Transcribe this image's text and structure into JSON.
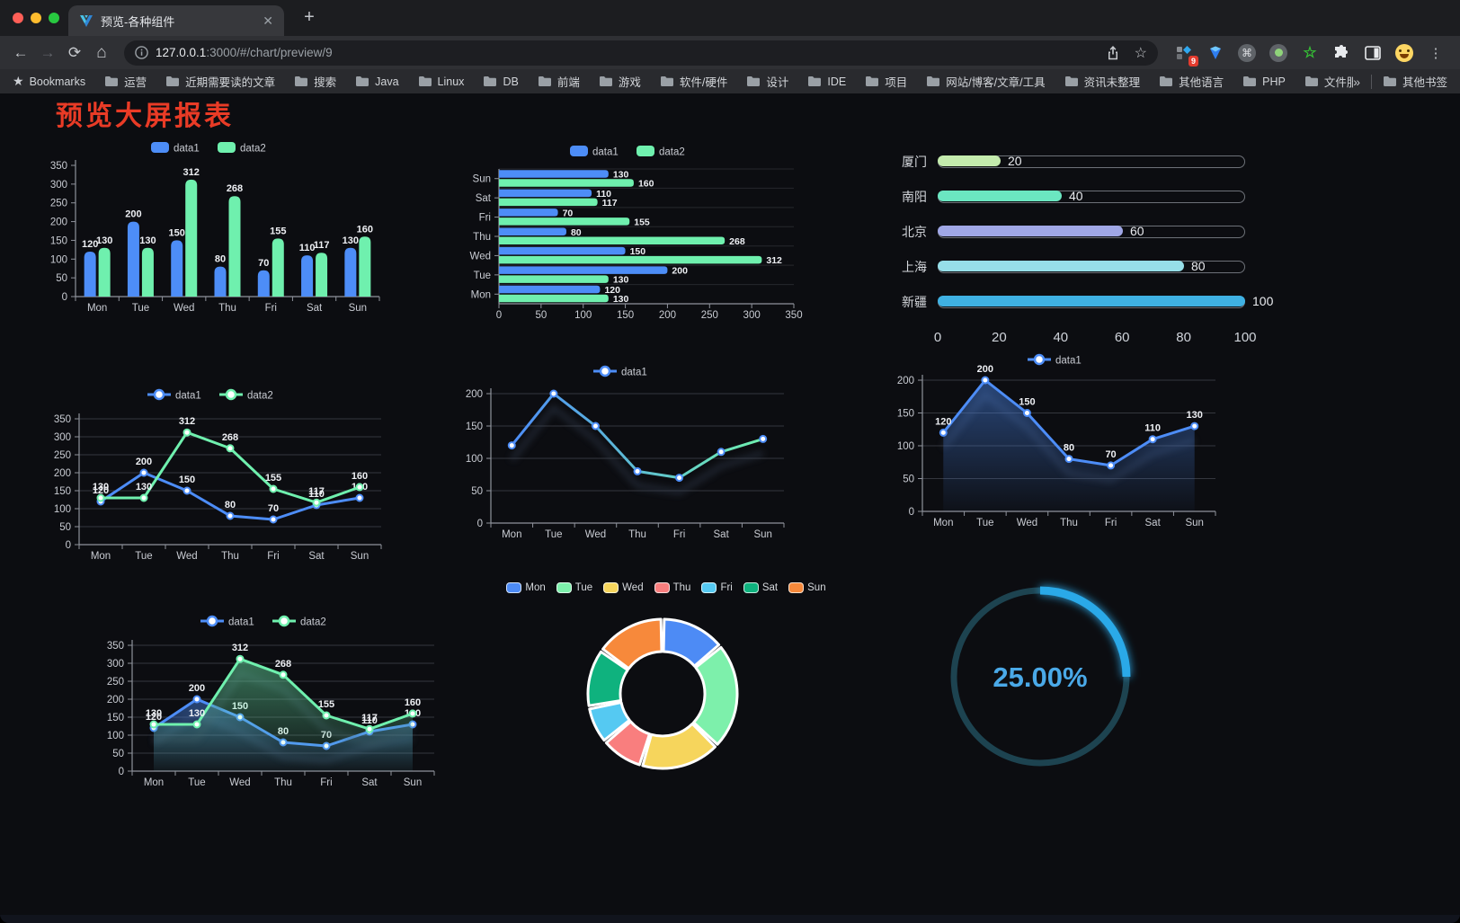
{
  "browser": {
    "tab_title": "预览-各种组件",
    "tab_close_glyph": "✕",
    "new_tab_glyph": "+",
    "url_host": "127.0.0.1",
    "url_path": ":3000/#/chart/preview/9",
    "bookmarks_label": "Bookmarks",
    "bookmark_folders": [
      "运营",
      "近期需要读的文章",
      "搜索",
      "Java",
      "Linux",
      "DB",
      "前端",
      "游戏",
      "软件/硬件",
      "设计",
      "IDE",
      "项目",
      "网站/博客/文章/工具",
      "资讯未整理",
      "其他语言",
      "PHP",
      "文件服务器"
    ],
    "overflow_glyph": "»",
    "other_bookmarks": "其他书签",
    "extension_badge": "9",
    "kebab_glyph": "⋮"
  },
  "page": {
    "title": "预览大屏报表",
    "title_color": "#e93b26",
    "background": "#0c0d11"
  },
  "chart_data": [
    {
      "id": "bar-vertical",
      "type": "bar",
      "orientation": "vertical",
      "categories": [
        "Mon",
        "Tue",
        "Wed",
        "Thu",
        "Fri",
        "Sat",
        "Sun"
      ],
      "series": [
        {
          "name": "data1",
          "color": "#4d8df7",
          "values": [
            120,
            200,
            150,
            80,
            70,
            110,
            130
          ]
        },
        {
          "name": "data2",
          "color": "#6ff0ae",
          "values": [
            130,
            130,
            312,
            268,
            155,
            117,
            160
          ]
        }
      ],
      "ylim": [
        0,
        350
      ],
      "ytick": 50,
      "legend_position": "top",
      "value_labels": true,
      "grid": false
    },
    {
      "id": "bar-horizontal",
      "type": "bar",
      "orientation": "horizontal",
      "categories": [
        "Mon",
        "Tue",
        "Wed",
        "Thu",
        "Fri",
        "Sat",
        "Sun"
      ],
      "display_order_top_to_bottom": [
        "Sun",
        "Sat",
        "Fri",
        "Thu",
        "Wed",
        "Tue",
        "Mon"
      ],
      "series": [
        {
          "name": "data1",
          "color": "#4d8df7",
          "values": [
            120,
            200,
            150,
            80,
            70,
            110,
            130
          ]
        },
        {
          "name": "data2",
          "color": "#6ff0ae",
          "values": [
            130,
            130,
            312,
            268,
            155,
            117,
            160
          ]
        }
      ],
      "xlim": [
        0,
        350
      ],
      "xtick": 50,
      "legend_position": "top",
      "value_labels": true
    },
    {
      "id": "city-progress",
      "type": "bar",
      "variant": "progress",
      "xlim": [
        0,
        100
      ],
      "xticks": [
        0,
        20,
        40,
        60,
        80,
        100
      ],
      "rows": [
        {
          "label": "厦门",
          "value": 20,
          "color": "#c4ebad"
        },
        {
          "label": "南阳",
          "value": 40,
          "color": "#6be6c1"
        },
        {
          "label": "北京",
          "value": 60,
          "color": "#a0a7e6"
        },
        {
          "label": "上海",
          "value": 80,
          "color": "#96dee8"
        },
        {
          "label": "新疆",
          "value": 100,
          "color": "#3fb1e3"
        }
      ]
    },
    {
      "id": "line-dual",
      "type": "line",
      "categories": [
        "Mon",
        "Tue",
        "Wed",
        "Thu",
        "Fri",
        "Sat",
        "Sun"
      ],
      "series": [
        {
          "name": "data1",
          "color": "#4d8df7",
          "values": [
            120,
            200,
            150,
            80,
            70,
            110,
            130
          ]
        },
        {
          "name": "data2",
          "color": "#6ff0ae",
          "values": [
            130,
            130,
            312,
            268,
            155,
            117,
            160
          ]
        }
      ],
      "ylim": [
        0,
        350
      ],
      "ytick": 50,
      "legend_position": "top",
      "value_labels": true,
      "markers": true,
      "grid": true,
      "shadow": false
    },
    {
      "id": "line-gradient",
      "type": "line",
      "categories": [
        "Mon",
        "Tue",
        "Wed",
        "Thu",
        "Fri",
        "Sat",
        "Sun"
      ],
      "series": [
        {
          "name": "data1",
          "gradient": [
            "#4d8df7",
            "#6ff0ae"
          ],
          "marker_color": "#4d8df7",
          "values": [
            120,
            200,
            150,
            80,
            70,
            110,
            130
          ]
        }
      ],
      "ylim": [
        0,
        200
      ],
      "ytick": 50,
      "legend_position": "top",
      "value_labels": false,
      "markers": true,
      "grid": true,
      "shadow": true
    },
    {
      "id": "area-single",
      "type": "area",
      "categories": [
        "Mon",
        "Tue",
        "Wed",
        "Thu",
        "Fri",
        "Sat",
        "Sun"
      ],
      "series": [
        {
          "name": "data1",
          "color": "#4d8df7",
          "area": true,
          "values": [
            120,
            200,
            150,
            80,
            70,
            110,
            130
          ]
        }
      ],
      "ylim": [
        0,
        200
      ],
      "ytick": 50,
      "legend_position": "top",
      "value_labels": true,
      "markers": true,
      "grid": true,
      "shadow": true
    },
    {
      "id": "area-dual",
      "type": "area",
      "categories": [
        "Mon",
        "Tue",
        "Wed",
        "Thu",
        "Fri",
        "Sat",
        "Sun"
      ],
      "series": [
        {
          "name": "data1",
          "color": "#4d8df7",
          "area": true,
          "values": [
            120,
            200,
            150,
            80,
            70,
            110,
            130
          ]
        },
        {
          "name": "data2",
          "color": "#6ff0ae",
          "area": true,
          "values": [
            130,
            130,
            312,
            268,
            155,
            117,
            160
          ]
        }
      ],
      "ylim": [
        0,
        350
      ],
      "ytick": 50,
      "legend_position": "top",
      "value_labels": true,
      "markers": true,
      "grid": true,
      "shadow": true
    },
    {
      "id": "donut",
      "type": "pie",
      "donut": true,
      "legend_position": "top",
      "categories": [
        "Mon",
        "Tue",
        "Wed",
        "Thu",
        "Fri",
        "Sat",
        "Sun"
      ],
      "values": [
        120,
        200,
        150,
        80,
        70,
        110,
        130
      ],
      "colors": [
        "#4d8bf5",
        "#7df0ab",
        "#f6d55c",
        "#f97e7e",
        "#55c9f2",
        "#0fb27e",
        "#f7893b"
      ],
      "border_color": "#ffffff"
    },
    {
      "id": "gauge",
      "type": "gauge",
      "value_percent": 25,
      "label": "25.00%",
      "progress_color": "#29a9e8",
      "track_color": "#1d4350",
      "text_color": "#4aa9e8"
    }
  ]
}
